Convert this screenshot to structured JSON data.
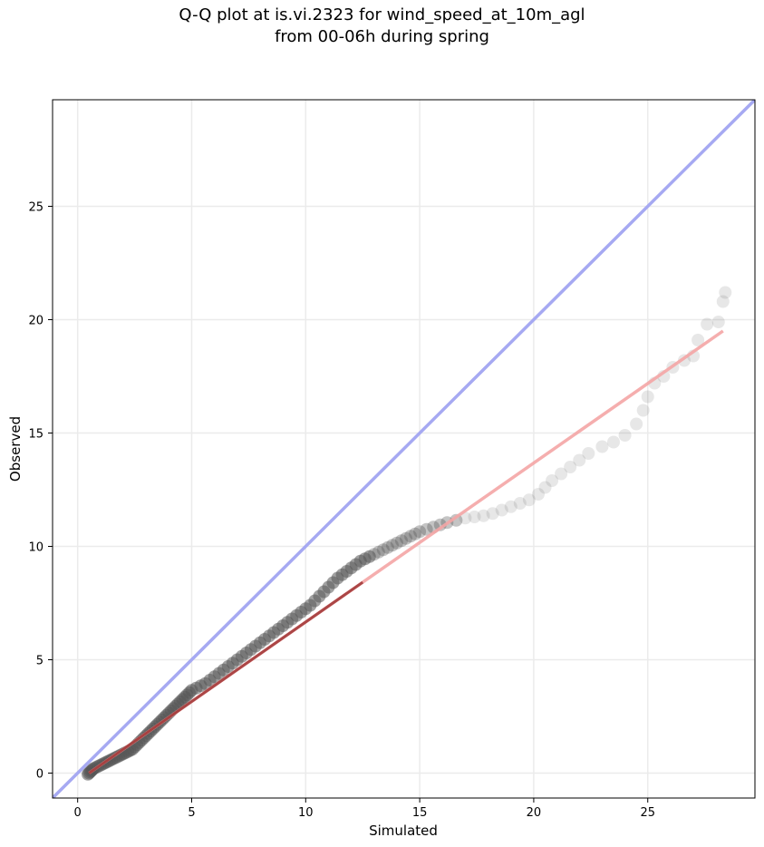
{
  "chart_data": {
    "type": "scatter",
    "title": [
      "Q-Q plot at is.vi.2323 for wind_speed_at_10m_agl",
      "from 00-06h during spring"
    ],
    "xlabel": "Simulated",
    "ylabel": "Observed",
    "xlim": [
      -1.1,
      29.7
    ],
    "ylim": [
      -1.1,
      29.7
    ],
    "xticks": [
      0,
      5,
      10,
      15,
      20,
      25
    ],
    "yticks": [
      0,
      5,
      10,
      15,
      20,
      25
    ],
    "grid": true,
    "legend": "none",
    "colors": {
      "points": "#555555",
      "identity_line": "#a6a9f2",
      "fit_line": "#f4a5a5",
      "fit_line_dense": "#8b1a1a",
      "grid": "#ebebeb"
    },
    "identity_line": {
      "from": [
        -1.1,
        -1.1
      ],
      "to": [
        29.7,
        29.7
      ]
    },
    "fit_line": {
      "from": [
        0.5,
        0.0
      ],
      "to": [
        28.3,
        19.5
      ]
    },
    "points": [
      [
        0.45,
        -0.05
      ],
      [
        0.5,
        0.0
      ],
      [
        0.55,
        0.05
      ],
      [
        0.6,
        0.1
      ],
      [
        0.65,
        0.15
      ],
      [
        0.7,
        0.2
      ],
      [
        0.8,
        0.25
      ],
      [
        0.9,
        0.3
      ],
      [
        1.0,
        0.35
      ],
      [
        1.1,
        0.4
      ],
      [
        1.2,
        0.45
      ],
      [
        1.3,
        0.5
      ],
      [
        1.4,
        0.55
      ],
      [
        1.5,
        0.6
      ],
      [
        1.6,
        0.65
      ],
      [
        1.7,
        0.7
      ],
      [
        1.8,
        0.75
      ],
      [
        1.9,
        0.8
      ],
      [
        2.0,
        0.85
      ],
      [
        2.1,
        0.9
      ],
      [
        2.2,
        0.95
      ],
      [
        2.3,
        1.0
      ],
      [
        2.4,
        1.05
      ],
      [
        2.5,
        1.15
      ],
      [
        2.6,
        1.25
      ],
      [
        2.7,
        1.35
      ],
      [
        2.8,
        1.45
      ],
      [
        2.9,
        1.55
      ],
      [
        3.0,
        1.65
      ],
      [
        3.1,
        1.75
      ],
      [
        3.2,
        1.85
      ],
      [
        3.3,
        1.95
      ],
      [
        3.4,
        2.05
      ],
      [
        3.5,
        2.15
      ],
      [
        3.6,
        2.25
      ],
      [
        3.7,
        2.35
      ],
      [
        3.8,
        2.45
      ],
      [
        3.9,
        2.55
      ],
      [
        4.0,
        2.65
      ],
      [
        4.1,
        2.75
      ],
      [
        4.2,
        2.85
      ],
      [
        4.3,
        2.95
      ],
      [
        4.4,
        3.05
      ],
      [
        4.5,
        3.15
      ],
      [
        4.6,
        3.25
      ],
      [
        4.7,
        3.35
      ],
      [
        4.8,
        3.45
      ],
      [
        4.9,
        3.55
      ],
      [
        5.0,
        3.65
      ],
      [
        5.2,
        3.75
      ],
      [
        5.4,
        3.85
      ],
      [
        5.6,
        3.95
      ],
      [
        5.8,
        4.1
      ],
      [
        6.0,
        4.25
      ],
      [
        6.2,
        4.4
      ],
      [
        6.4,
        4.55
      ],
      [
        6.6,
        4.7
      ],
      [
        6.8,
        4.85
      ],
      [
        7.0,
        5.0
      ],
      [
        7.2,
        5.15
      ],
      [
        7.4,
        5.3
      ],
      [
        7.6,
        5.45
      ],
      [
        7.8,
        5.6
      ],
      [
        8.0,
        5.75
      ],
      [
        8.2,
        5.9
      ],
      [
        8.4,
        6.05
      ],
      [
        8.6,
        6.2
      ],
      [
        8.8,
        6.35
      ],
      [
        9.0,
        6.5
      ],
      [
        9.2,
        6.65
      ],
      [
        9.4,
        6.8
      ],
      [
        9.6,
        6.95
      ],
      [
        9.8,
        7.1
      ],
      [
        10.0,
        7.25
      ],
      [
        10.2,
        7.4
      ],
      [
        10.4,
        7.6
      ],
      [
        10.6,
        7.8
      ],
      [
        10.8,
        8.0
      ],
      [
        11.0,
        8.2
      ],
      [
        11.2,
        8.4
      ],
      [
        11.4,
        8.6
      ],
      [
        11.6,
        8.75
      ],
      [
        11.8,
        8.9
      ],
      [
        12.0,
        9.05
      ],
      [
        12.2,
        9.2
      ],
      [
        12.4,
        9.35
      ],
      [
        12.6,
        9.45
      ],
      [
        12.8,
        9.55
      ],
      [
        13.0,
        9.65
      ],
      [
        13.2,
        9.75
      ],
      [
        13.4,
        9.85
      ],
      [
        13.6,
        9.95
      ],
      [
        13.8,
        10.05
      ],
      [
        14.0,
        10.15
      ],
      [
        14.2,
        10.25
      ],
      [
        14.4,
        10.35
      ],
      [
        14.6,
        10.45
      ],
      [
        14.8,
        10.55
      ],
      [
        15.0,
        10.65
      ],
      [
        15.3,
        10.75
      ],
      [
        15.6,
        10.85
      ],
      [
        15.9,
        10.95
      ],
      [
        16.2,
        11.05
      ],
      [
        16.6,
        11.15
      ],
      [
        17.0,
        11.25
      ],
      [
        17.4,
        11.3
      ],
      [
        17.8,
        11.35
      ],
      [
        18.2,
        11.45
      ],
      [
        18.6,
        11.6
      ],
      [
        19.0,
        11.75
      ],
      [
        19.4,
        11.9
      ],
      [
        19.8,
        12.05
      ],
      [
        20.2,
        12.3
      ],
      [
        20.5,
        12.6
      ],
      [
        20.8,
        12.9
      ],
      [
        21.2,
        13.2
      ],
      [
        21.6,
        13.5
      ],
      [
        22.0,
        13.8
      ],
      [
        22.4,
        14.1
      ],
      [
        23.0,
        14.4
      ],
      [
        23.5,
        14.6
      ],
      [
        24.0,
        14.9
      ],
      [
        24.5,
        15.4
      ],
      [
        24.8,
        16.0
      ],
      [
        25.0,
        16.6
      ],
      [
        25.3,
        17.2
      ],
      [
        25.7,
        17.5
      ],
      [
        26.1,
        17.9
      ],
      [
        26.6,
        18.2
      ],
      [
        27.0,
        18.4
      ],
      [
        27.2,
        19.1
      ],
      [
        27.6,
        19.8
      ],
      [
        28.1,
        19.9
      ],
      [
        28.3,
        20.8
      ],
      [
        28.4,
        21.2
      ]
    ]
  }
}
